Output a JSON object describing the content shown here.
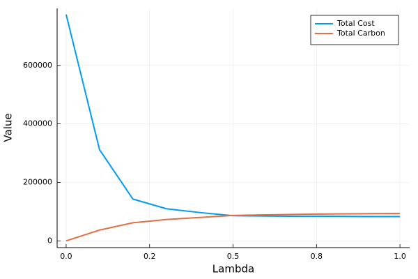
{
  "chart_data": {
    "type": "line",
    "x_label": "Lambda",
    "y_label": "Value",
    "x": [
      0,
      0.1,
      0.2,
      0.3,
      0.4,
      0.5,
      0.6,
      0.7,
      0.8,
      0.9,
      1.0
    ],
    "series": [
      {
        "name": "Total Cost",
        "color": "#009af9",
        "values": [
          774000,
          312000,
          143000,
          110000,
          97000,
          86000,
          85000,
          84000,
          84000,
          83000,
          83000
        ]
      },
      {
        "name": "Total Carbon",
        "color": "#e26f46",
        "values": [
          0,
          37000,
          62000,
          73000,
          80000,
          87000,
          89000,
          91000,
          92000,
          93000,
          94000
        ]
      }
    ],
    "xlim": [
      -0.027,
      1.029
    ],
    "ylim": [
      -23000,
      795000
    ],
    "xticks": [
      {
        "value": 0,
        "label": "0.0"
      },
      {
        "value": 0.25,
        "label": "0.2"
      },
      {
        "value": 0.5,
        "label": "0.5"
      },
      {
        "value": 0.75,
        "label": "0.8"
      },
      {
        "value": 1,
        "label": "1.0"
      }
    ],
    "yticks": [
      0,
      200000,
      400000,
      600000
    ],
    "grid": true,
    "legend": "top-right"
  }
}
